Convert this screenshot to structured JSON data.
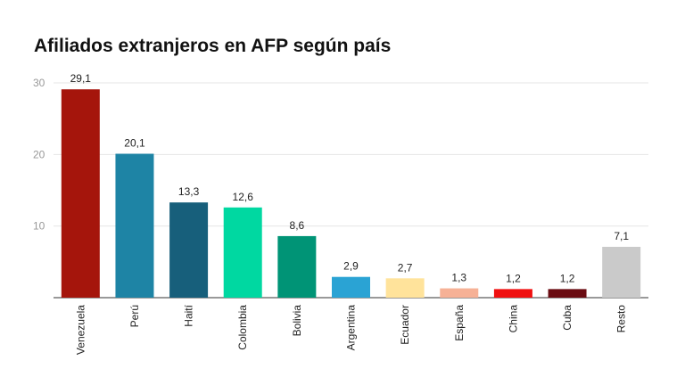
{
  "chart_data": {
    "type": "bar",
    "title": "Afiliados extranjeros en AFP según país",
    "xlabel": "",
    "ylabel": "",
    "ylim": [
      0,
      30
    ],
    "yticks": [
      10,
      20,
      30
    ],
    "grid": true,
    "categories": [
      "Venezuela",
      "Perú",
      "Haití",
      "Colombia",
      "Bolivia",
      "Argentina",
      "Ecuador",
      "España",
      "China",
      "Cuba",
      "Resto"
    ],
    "values": [
      29.1,
      20.1,
      13.3,
      12.6,
      8.6,
      2.9,
      2.7,
      1.3,
      1.2,
      1.2,
      7.1
    ],
    "value_labels": [
      "29,1",
      "20,1",
      "13,3",
      "12,6",
      "8,6",
      "2,9",
      "2,7",
      "1,3",
      "1,2",
      "1,2",
      "7,1"
    ],
    "colors": [
      "#a5150c",
      "#1e84a5",
      "#175f7b",
      "#00d8a1",
      "#009476",
      "#2aa3d4",
      "#ffe39b",
      "#f6b196",
      "#f01010",
      "#6a0c12",
      "#cacaca"
    ]
  }
}
